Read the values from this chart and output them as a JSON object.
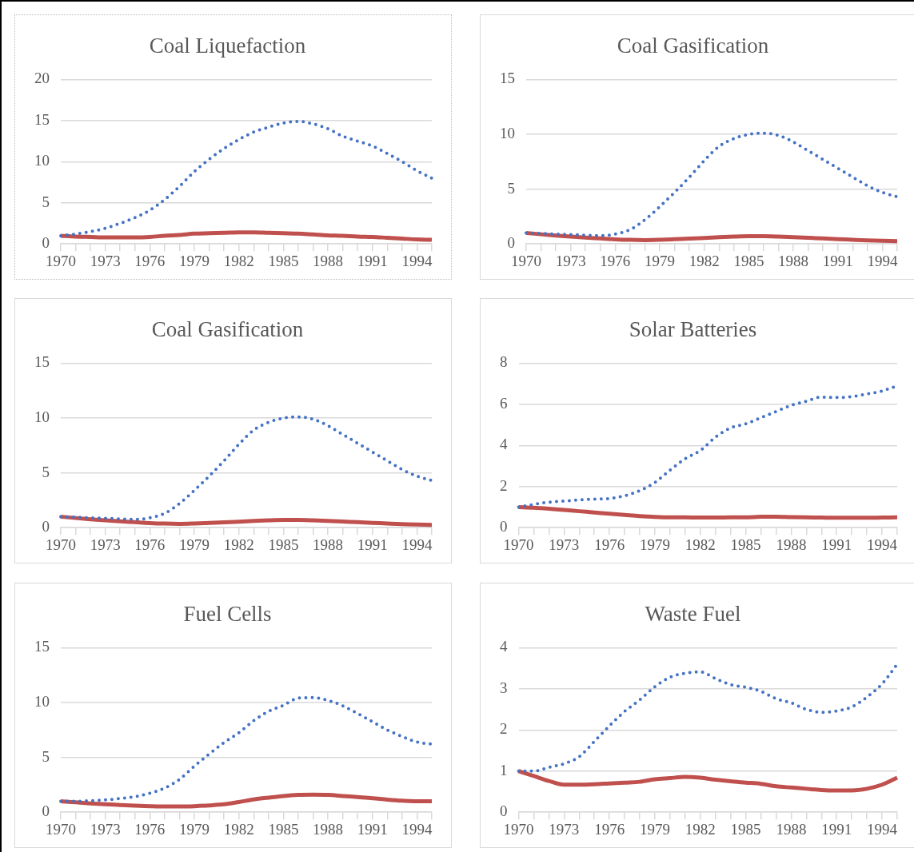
{
  "chart_data": [
    {
      "type": "line",
      "title": "Coal Liquefaction",
      "categories": [
        "1970",
        null,
        null,
        "1973",
        null,
        null,
        "1976",
        null,
        null,
        "1979",
        null,
        null,
        "1982",
        null,
        null,
        "1985",
        null,
        null,
        "1988",
        null,
        null,
        "1991",
        null,
        null,
        "1994",
        null
      ],
      "ylim": [
        0,
        20
      ],
      "yticks": [
        0,
        5,
        10,
        15,
        20
      ],
      "grid": "y",
      "legend": false,
      "marker": "none",
      "series": [
        {
          "color": "#4472c4",
          "line_style": "dotted",
          "values": [
            1.0,
            1.2,
            1.5,
            1.9,
            2.5,
            3.2,
            4.1,
            5.4,
            7.0,
            8.8,
            10.3,
            11.6,
            12.7,
            13.6,
            14.2,
            14.7,
            14.9,
            14.6,
            14.0,
            13.1,
            12.5,
            11.9,
            11.0,
            10.0,
            8.9,
            8.0
          ]
        },
        {
          "color": "#c0504d",
          "line_style": "solid",
          "values": [
            1.0,
            0.9,
            0.85,
            0.8,
            0.8,
            0.8,
            0.85,
            1.0,
            1.1,
            1.25,
            1.3,
            1.35,
            1.4,
            1.4,
            1.35,
            1.3,
            1.25,
            1.15,
            1.05,
            1.0,
            0.9,
            0.85,
            0.75,
            0.65,
            0.55,
            0.5
          ]
        }
      ]
    },
    {
      "type": "line",
      "title": "Coal Gasification",
      "categories": [
        "1970",
        null,
        null,
        "1973",
        null,
        null,
        "1976",
        null,
        null,
        "1979",
        null,
        null,
        "1982",
        null,
        null,
        "1985",
        null,
        null,
        "1988",
        null,
        null,
        "1991",
        null,
        null,
        "1994",
        null
      ],
      "ylim": [
        0,
        15
      ],
      "yticks": [
        0,
        5,
        10,
        15
      ],
      "grid": "y",
      "legend": false,
      "marker": "none",
      "series": [
        {
          "color": "#4472c4",
          "line_style": "dotted",
          "values": [
            1.0,
            0.95,
            0.9,
            0.85,
            0.8,
            0.75,
            0.9,
            1.3,
            2.2,
            3.4,
            4.7,
            6.1,
            7.6,
            8.9,
            9.6,
            10.0,
            10.1,
            9.9,
            9.3,
            8.5,
            7.7,
            6.9,
            6.1,
            5.3,
            4.7,
            4.3
          ]
        },
        {
          "color": "#c0504d",
          "line_style": "solid",
          "values": [
            1.0,
            0.88,
            0.77,
            0.67,
            0.58,
            0.5,
            0.42,
            0.37,
            0.35,
            0.38,
            0.43,
            0.48,
            0.55,
            0.62,
            0.67,
            0.7,
            0.7,
            0.67,
            0.62,
            0.56,
            0.5,
            0.44,
            0.38,
            0.32,
            0.28,
            0.26
          ]
        }
      ]
    },
    {
      "type": "line",
      "title": "Coal Gasification",
      "categories": [
        "1970",
        null,
        null,
        "1973",
        null,
        null,
        "1976",
        null,
        null,
        "1979",
        null,
        null,
        "1982",
        null,
        null,
        "1985",
        null,
        null,
        "1988",
        null,
        null,
        "1991",
        null,
        null,
        "1994",
        null
      ],
      "ylim": [
        0,
        15
      ],
      "yticks": [
        0,
        5,
        10,
        15
      ],
      "grid": "y",
      "legend": false,
      "marker": "none",
      "series": [
        {
          "color": "#4472c4",
          "line_style": "dotted",
          "values": [
            1.0,
            0.95,
            0.9,
            0.85,
            0.8,
            0.75,
            0.9,
            1.3,
            2.2,
            3.4,
            4.7,
            6.1,
            7.6,
            8.9,
            9.6,
            10.0,
            10.1,
            9.9,
            9.3,
            8.5,
            7.7,
            6.9,
            6.1,
            5.3,
            4.7,
            4.3
          ]
        },
        {
          "color": "#c0504d",
          "line_style": "solid",
          "values": [
            1.0,
            0.88,
            0.77,
            0.67,
            0.58,
            0.5,
            0.42,
            0.37,
            0.35,
            0.38,
            0.43,
            0.48,
            0.55,
            0.62,
            0.67,
            0.7,
            0.7,
            0.67,
            0.62,
            0.56,
            0.5,
            0.44,
            0.38,
            0.32,
            0.28,
            0.26
          ]
        }
      ]
    },
    {
      "type": "line",
      "title": "Solar Batteries",
      "categories": [
        "1970",
        null,
        null,
        "1973",
        null,
        null,
        "1976",
        null,
        null,
        "1979",
        null,
        null,
        "1982",
        null,
        null,
        "1985",
        null,
        null,
        "1988",
        null,
        null,
        "1991",
        null,
        null,
        "1994",
        null
      ],
      "ylim": [
        0,
        8
      ],
      "yticks": [
        0,
        2,
        4,
        6,
        8
      ],
      "grid": "y",
      "legend": false,
      "marker": "none",
      "series": [
        {
          "color": "#4472c4",
          "line_style": "dotted",
          "values": [
            1.0,
            1.13,
            1.24,
            1.29,
            1.35,
            1.39,
            1.42,
            1.55,
            1.8,
            2.2,
            2.8,
            3.35,
            3.75,
            4.4,
            4.85,
            5.05,
            5.35,
            5.65,
            5.95,
            6.15,
            6.35,
            6.33,
            6.37,
            6.5,
            6.65,
            6.9
          ]
        },
        {
          "color": "#c0504d",
          "line_style": "solid",
          "values": [
            1.0,
            0.97,
            0.92,
            0.86,
            0.8,
            0.74,
            0.68,
            0.62,
            0.56,
            0.52,
            0.5,
            0.5,
            0.49,
            0.49,
            0.5,
            0.5,
            0.53,
            0.53,
            0.51,
            0.5,
            0.49,
            0.48,
            0.48,
            0.48,
            0.49,
            0.5
          ]
        }
      ]
    },
    {
      "type": "line",
      "title": "Fuel Cells",
      "categories": [
        "1970",
        null,
        null,
        "1973",
        null,
        null,
        "1976",
        null,
        null,
        "1979",
        null,
        null,
        "1982",
        null,
        null,
        "1985",
        null,
        null,
        "1988",
        null,
        null,
        "1991",
        null,
        null,
        "1994",
        null
      ],
      "ylim": [
        0,
        15
      ],
      "yticks": [
        0,
        5,
        10,
        15
      ],
      "grid": "y",
      "legend": false,
      "marker": "none",
      "series": [
        {
          "color": "#4472c4",
          "line_style": "dotted",
          "values": [
            1.0,
            1.0,
            1.05,
            1.12,
            1.25,
            1.42,
            1.72,
            2.2,
            3.0,
            4.2,
            5.3,
            6.35,
            7.25,
            8.35,
            9.2,
            9.75,
            10.4,
            10.45,
            10.2,
            9.7,
            9.0,
            8.25,
            7.5,
            6.9,
            6.4,
            6.2
          ]
        },
        {
          "color": "#c0504d",
          "line_style": "solid",
          "values": [
            1.0,
            0.9,
            0.8,
            0.72,
            0.66,
            0.6,
            0.55,
            0.52,
            0.52,
            0.55,
            0.62,
            0.72,
            0.93,
            1.16,
            1.33,
            1.48,
            1.58,
            1.6,
            1.58,
            1.48,
            1.38,
            1.28,
            1.15,
            1.05,
            1.0,
            1.0
          ]
        }
      ]
    },
    {
      "type": "line",
      "title": "Waste Fuel",
      "categories": [
        "1970",
        null,
        null,
        "1973",
        null,
        null,
        "1976",
        null,
        null,
        "1979",
        null,
        null,
        "1982",
        null,
        null,
        "1985",
        null,
        null,
        "1988",
        null,
        null,
        "1991",
        null,
        null,
        "1994",
        null
      ],
      "ylim": [
        0,
        4
      ],
      "yticks": [
        0,
        1,
        2,
        3,
        4
      ],
      "grid": "y",
      "legend": false,
      "marker": "none",
      "series": [
        {
          "color": "#4472c4",
          "line_style": "dotted",
          "values": [
            1.0,
            1.0,
            1.09,
            1.18,
            1.35,
            1.72,
            2.1,
            2.45,
            2.73,
            3.05,
            3.28,
            3.38,
            3.41,
            3.25,
            3.1,
            3.04,
            2.94,
            2.76,
            2.66,
            2.5,
            2.43,
            2.46,
            2.56,
            2.8,
            3.12,
            3.6
          ]
        },
        {
          "color": "#c0504d",
          "line_style": "solid",
          "values": [
            1.0,
            0.88,
            0.76,
            0.67,
            0.67,
            0.68,
            0.7,
            0.72,
            0.74,
            0.8,
            0.83,
            0.86,
            0.84,
            0.79,
            0.75,
            0.72,
            0.69,
            0.63,
            0.6,
            0.57,
            0.54,
            0.53,
            0.53,
            0.57,
            0.67,
            0.84
          ]
        }
      ]
    }
  ]
}
